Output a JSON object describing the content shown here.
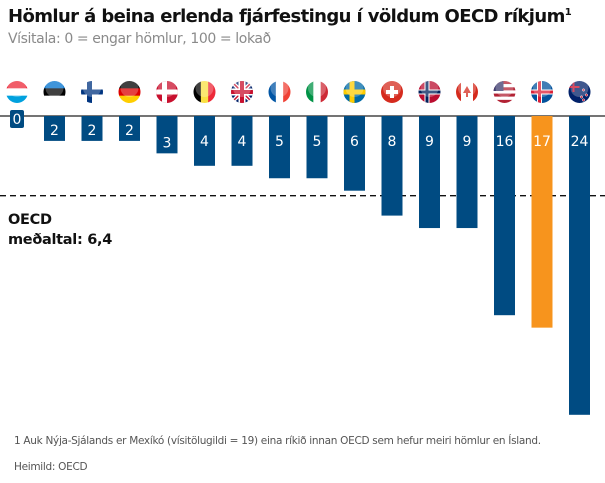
{
  "title": "Hömlur á beina erlenda fjárfestingu í völdum OECD ríkjum",
  "title_superscript": "1",
  "subtitle": "Vísitala: 0 = engar hömlur, 100 = lokað",
  "average_label_line1": "OECD",
  "average_label_line2": "meðaltal: 6,4",
  "footnote": "1 Auk Nýja-Sjálands er Mexíkó (vísitölugildi = 19) eina ríkið innan OECD sem hefur meiri hömlur en Ísland.",
  "source": "Heimild: OECD",
  "chart_data": {
    "type": "bar",
    "orientation": "vertical-downward",
    "categories": [
      "Lúxemborg",
      "Eistland",
      "Finnland",
      "Þýskaland",
      "Danmörk",
      "Belgía",
      "Bretland",
      "Frakkland",
      "Ítalía",
      "Svíþjóð",
      "Sviss",
      "Noregur",
      "Kanada",
      "Bandaríkin",
      "Ísland",
      "Nýja-Sjáland"
    ],
    "category_icons": [
      "flag-lu",
      "flag-ee",
      "flag-fi",
      "flag-de",
      "flag-dk",
      "flag-be",
      "flag-gb",
      "flag-fr",
      "flag-it",
      "flag-se",
      "flag-ch",
      "flag-no",
      "flag-ca",
      "flag-us",
      "flag-is",
      "flag-nz"
    ],
    "values": [
      0,
      2,
      2,
      2,
      3,
      4,
      4,
      5,
      5,
      6,
      8,
      9,
      9,
      16,
      17,
      24
    ],
    "data_labels": [
      "0",
      "2",
      "2",
      "2",
      "3",
      "4",
      "4",
      "5",
      "5",
      "6",
      "8",
      "9",
      "9",
      "16",
      "17",
      "24"
    ],
    "highlight": "Ísland",
    "reference_line": 6.4,
    "colors": {
      "bar": "#004b82",
      "highlight": "#f7941d",
      "reference_line": "#111111"
    },
    "ylim": [
      0,
      24
    ]
  }
}
